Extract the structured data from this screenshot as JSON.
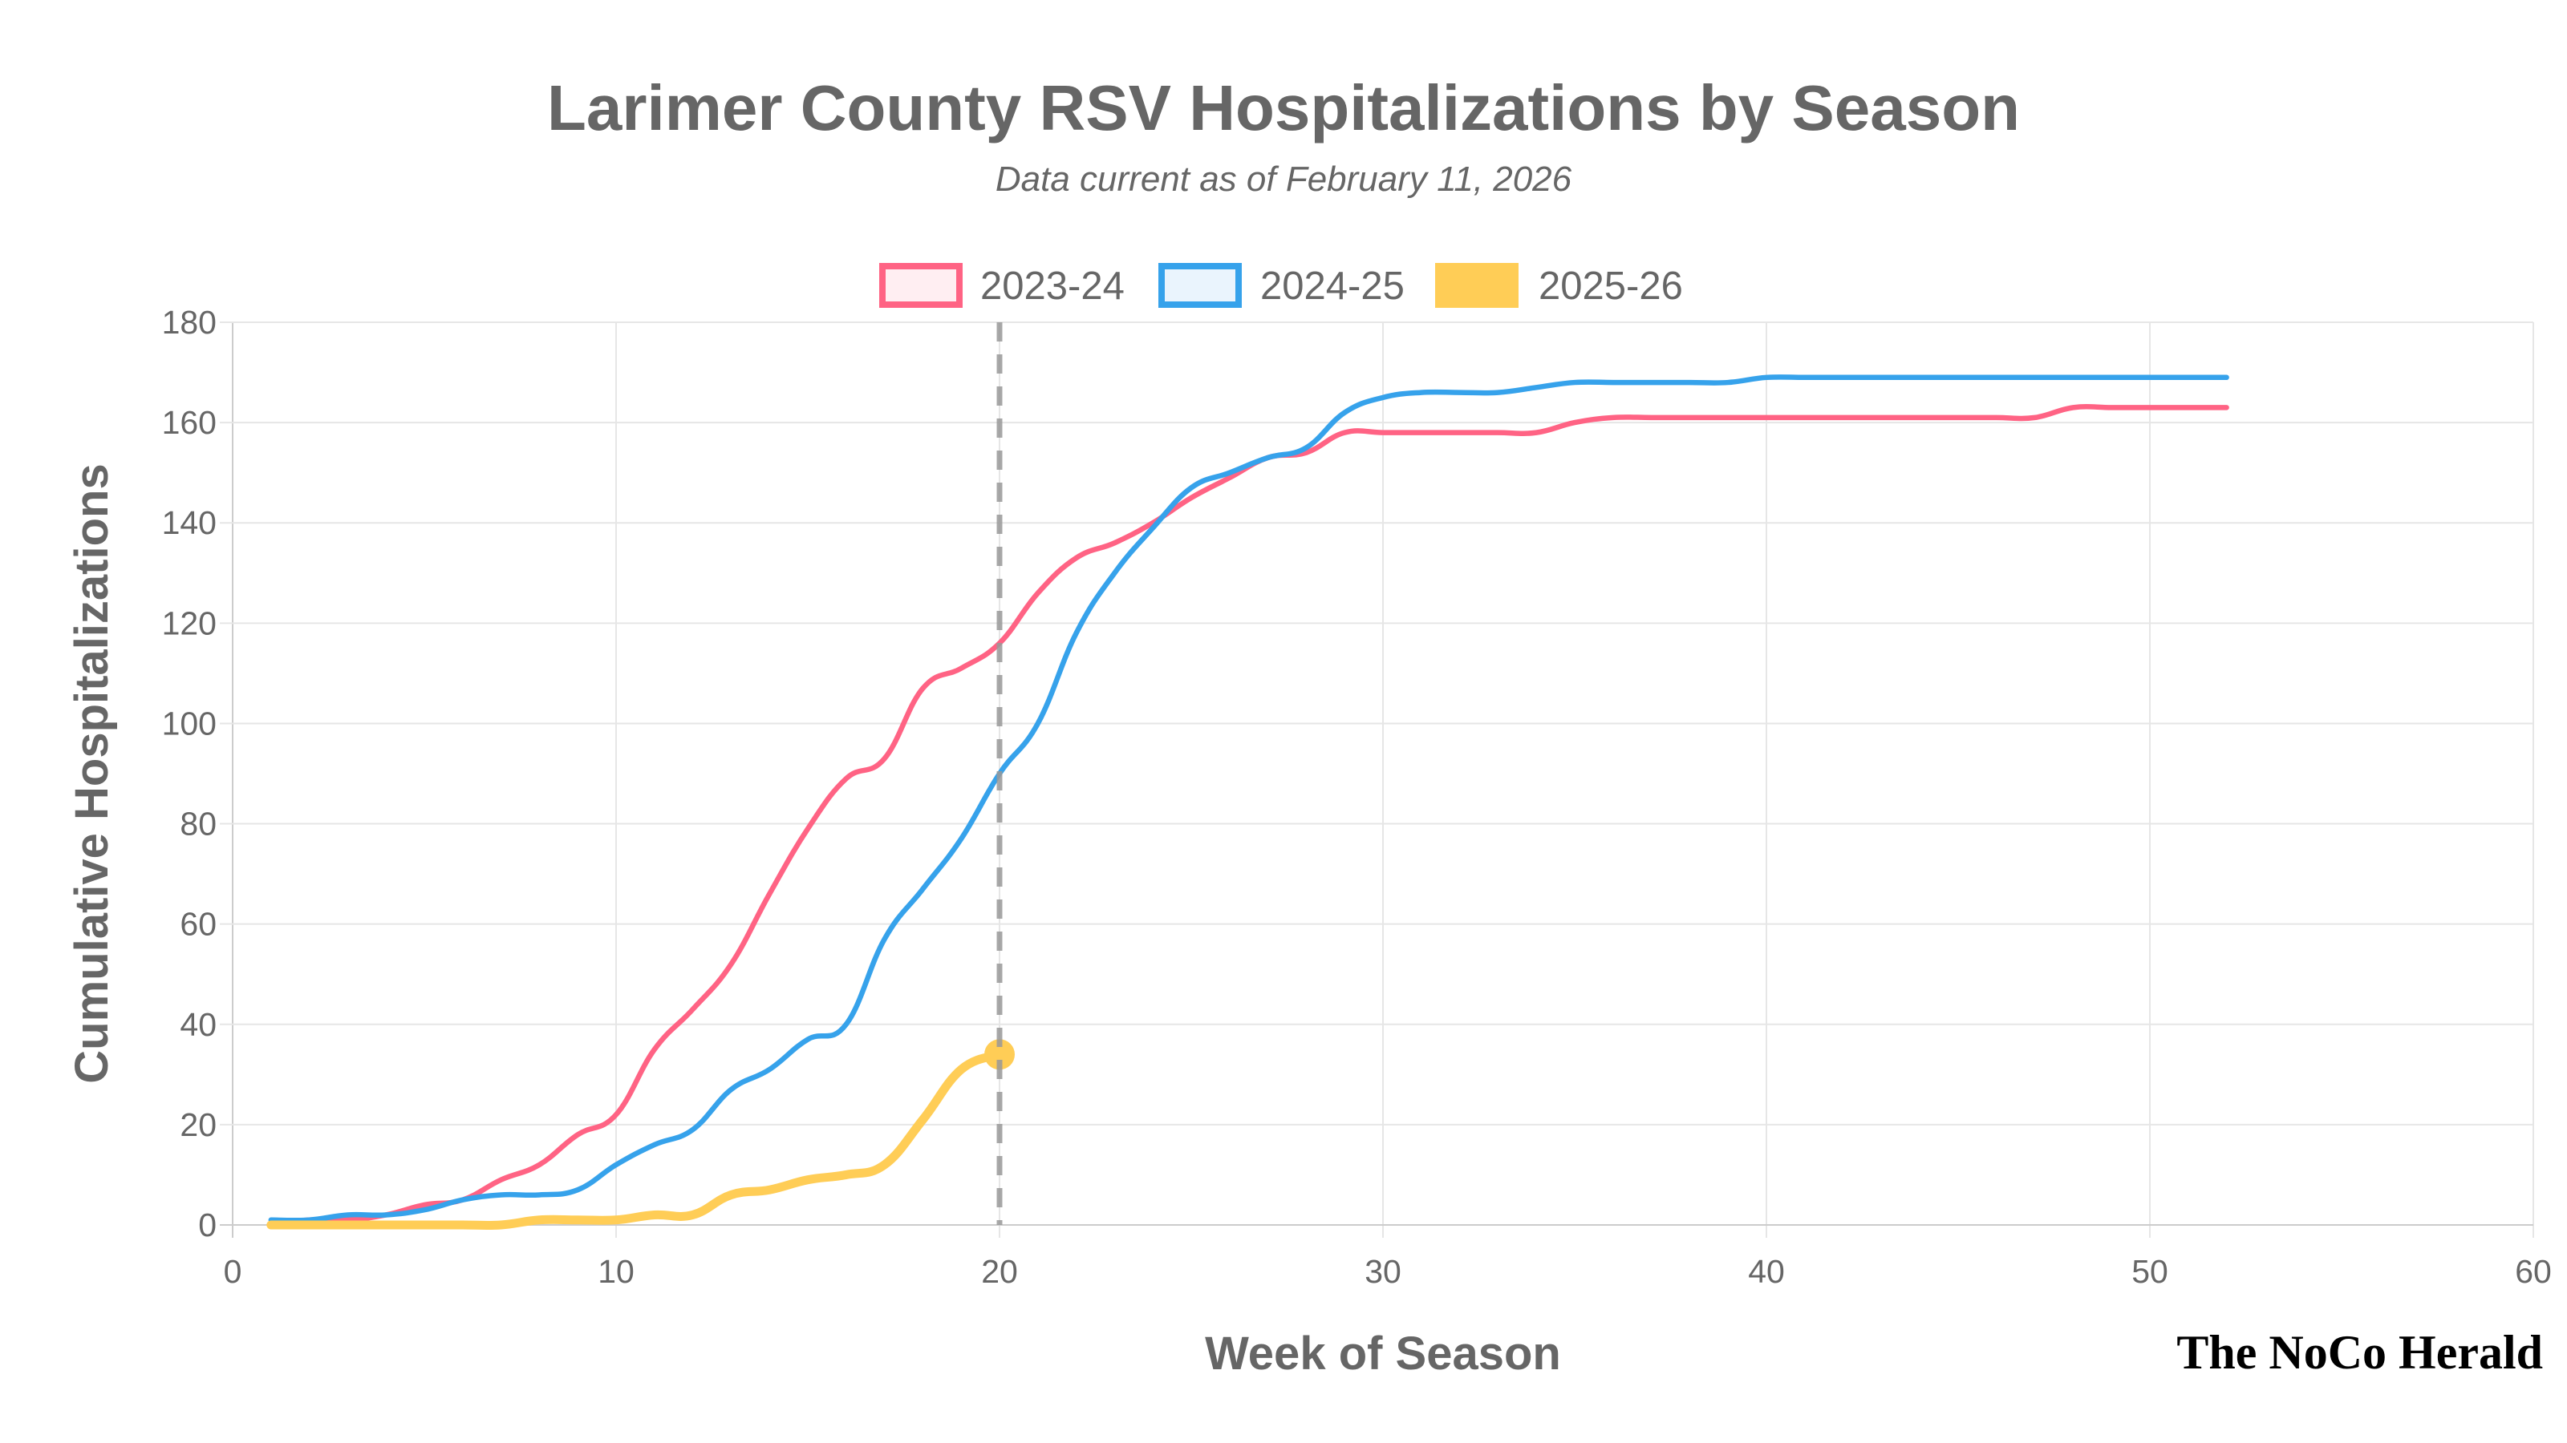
{
  "chart_data": {
    "type": "line",
    "title": "Larimer County RSV Hospitalizations by Season",
    "subtitle": "Data current as of February 11, 2026",
    "xlabel": "Week of Season",
    "ylabel": "Cumulative Hospitalizations",
    "xlim": [
      0,
      60
    ],
    "ylim": [
      0,
      180
    ],
    "x_ticks": [
      "0",
      "10",
      "20",
      "30",
      "40",
      "50",
      "60"
    ],
    "y_ticks": [
      "0",
      "20",
      "40",
      "60",
      "80",
      "100",
      "120",
      "140",
      "160",
      "180"
    ],
    "grid": true,
    "legend_placement": "top",
    "current_week_marker": 20,
    "series": [
      {
        "name": "2023-24",
        "color": "#ff6384",
        "fill": "#ffeef2",
        "x": [
          1,
          2,
          3,
          4,
          5,
          6,
          7,
          8,
          9,
          10,
          11,
          12,
          13,
          14,
          15,
          16,
          17,
          18,
          19,
          20,
          21,
          22,
          23,
          24,
          25,
          26,
          27,
          28,
          29,
          30,
          31,
          32,
          33,
          34,
          35,
          36,
          37,
          38,
          39,
          40,
          41,
          42,
          43,
          44,
          45,
          46,
          47,
          48,
          49,
          50,
          51,
          52
        ],
        "y": [
          0,
          1,
          1,
          2,
          4,
          5,
          9,
          12,
          18,
          22,
          35,
          43,
          52,
          66,
          79,
          89,
          93,
          107,
          111,
          116,
          126,
          133,
          136,
          140,
          145,
          149,
          153,
          154,
          158,
          158,
          158,
          158,
          158,
          158,
          160,
          161,
          161,
          161,
          161,
          161,
          161,
          161,
          161,
          161,
          161,
          161,
          161,
          163,
          163,
          163,
          163,
          163
        ]
      },
      {
        "name": "2024-25",
        "color": "#36a2eb",
        "fill": "#eaf4fd",
        "x": [
          1,
          2,
          3,
          4,
          5,
          6,
          7,
          8,
          9,
          10,
          11,
          12,
          13,
          14,
          15,
          16,
          17,
          18,
          19,
          20,
          21,
          22,
          23,
          24,
          25,
          26,
          27,
          28,
          29,
          30,
          31,
          32,
          33,
          34,
          35,
          36,
          37,
          38,
          39,
          40,
          41,
          42,
          43,
          44,
          45,
          46,
          47,
          48,
          49,
          50,
          51,
          52
        ],
        "y": [
          1,
          1,
          2,
          2,
          3,
          5,
          6,
          6,
          7,
          12,
          16,
          19,
          27,
          31,
          37,
          40,
          57,
          67,
          77,
          90,
          100,
          118,
          130,
          139,
          147,
          150,
          153,
          155,
          162,
          165,
          166,
          166,
          166,
          167,
          168,
          168,
          168,
          168,
          168,
          169,
          169,
          169,
          169,
          169,
          169,
          169,
          169,
          169,
          169,
          169,
          169,
          169
        ]
      },
      {
        "name": "2025-26",
        "color": "#ffcd56",
        "fill": "#ffcd56",
        "x": [
          1,
          2,
          3,
          4,
          5,
          6,
          7,
          8,
          9,
          10,
          11,
          12,
          13,
          14,
          15,
          16,
          17,
          18,
          19,
          20
        ],
        "y": [
          0,
          0,
          0,
          0,
          0,
          0,
          0,
          1,
          1,
          1,
          2,
          2,
          6,
          7,
          9,
          10,
          12,
          21,
          31,
          34
        ]
      }
    ]
  },
  "branding": {
    "logo_text": "The NoCo Herald"
  }
}
